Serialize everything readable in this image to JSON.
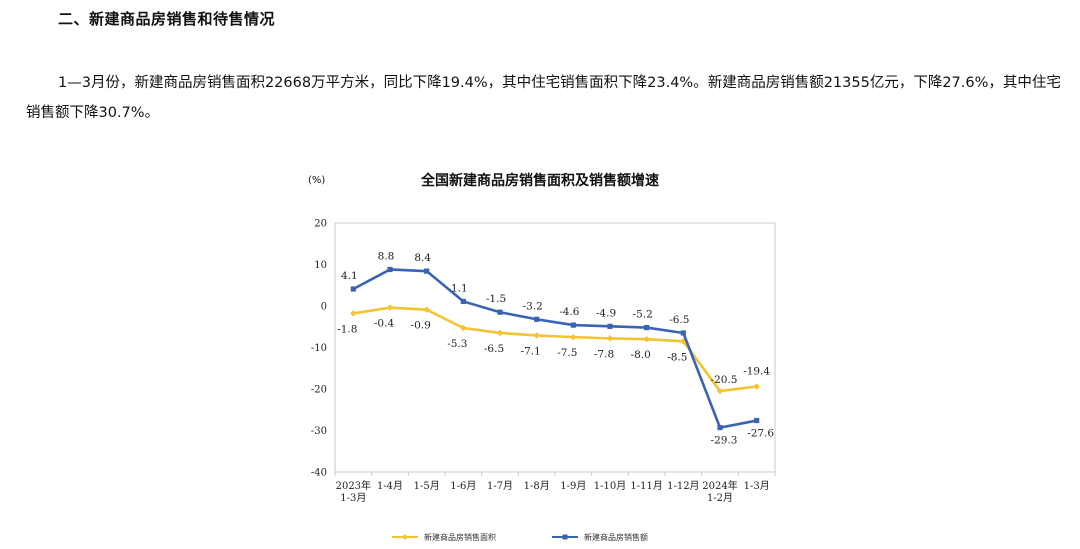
{
  "section": {
    "heading": "二、新建商品房销售和待售情况"
  },
  "paragraph": {
    "text": "1—3月份，新建商品房销售面积22668万平方米，同比下降19.4%，其中住宅销售面积下降23.4%。新建商品房销售额21355亿元，下降27.6%，其中住宅销售额下降30.7%。"
  },
  "chart_data": {
    "type": "line",
    "title": "全国新建商品房销售面积及销售额增速",
    "ylabel": "(%)",
    "xlabel": "",
    "ylim": [
      -40,
      20
    ],
    "yticks": [
      "20",
      "10",
      "0",
      "-10",
      "-20",
      "-30",
      "-40"
    ],
    "grid": false,
    "legend": "bottom",
    "categories": [
      [
        "2023年",
        "1-3月"
      ],
      [
        "1-4月"
      ],
      [
        "1-5月"
      ],
      [
        "1-6月"
      ],
      [
        "1-7月"
      ],
      [
        "1-8月"
      ],
      [
        "1-9月"
      ],
      [
        "1-10月"
      ],
      [
        "1-11月"
      ],
      [
        "1-12月"
      ],
      [
        "2024年",
        "1-2月"
      ],
      [
        "1-3月"
      ]
    ],
    "series": [
      {
        "name": "新建商品房销售面积",
        "color": "#f5c230",
        "values": [
          -1.8,
          -0.4,
          -0.9,
          -5.3,
          -6.5,
          -7.1,
          -7.5,
          -7.8,
          -8.0,
          -8.5,
          -20.5,
          -19.4
        ],
        "labels": [
          "-1.8",
          "-0.4",
          "-0.9",
          "-5.3",
          "-6.5",
          "-7.1",
          "-7.5",
          "-7.8",
          "-8.0",
          "-8.5",
          "-20.5",
          "-19.4"
        ]
      },
      {
        "name": "新建商品房销售额",
        "color": "#3a64b3",
        "values": [
          4.1,
          8.8,
          8.4,
          1.1,
          -1.5,
          -3.2,
          -4.6,
          -4.9,
          -5.2,
          -6.5,
          -29.3,
          -27.6
        ],
        "labels": [
          "4.1",
          "8.8",
          "8.4",
          "1.1",
          "-1.5",
          "-3.2",
          "-4.6",
          "-4.9",
          "-5.2",
          "-6.5",
          "-29.3",
          "-27.6"
        ]
      }
    ]
  }
}
